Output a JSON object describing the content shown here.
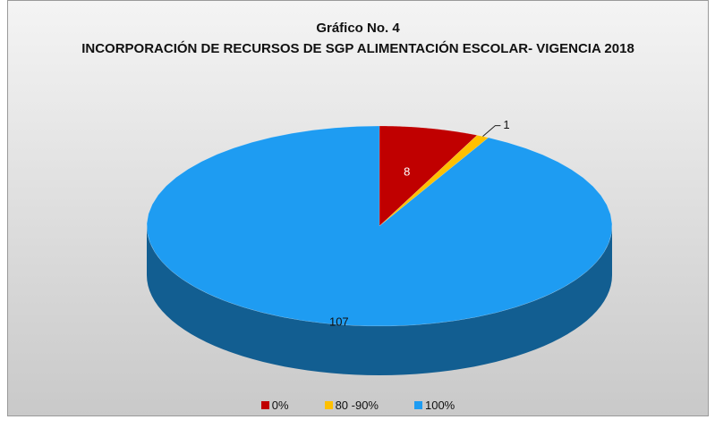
{
  "chart_data": {
    "type": "pie",
    "title": "Gráfico No. 4",
    "subtitle": "INCORPORACIÓN DE RECURSOS DE SGP ALIMENTACIÓN ESCOLAR- VIGENCIA 2018",
    "categories": [
      "0%",
      "80 -90%",
      "100%"
    ],
    "values": [
      8,
      1,
      107
    ],
    "colors": [
      "#c00000",
      "#ffc000",
      "#1e9cf2"
    ],
    "legend": "bottom"
  }
}
